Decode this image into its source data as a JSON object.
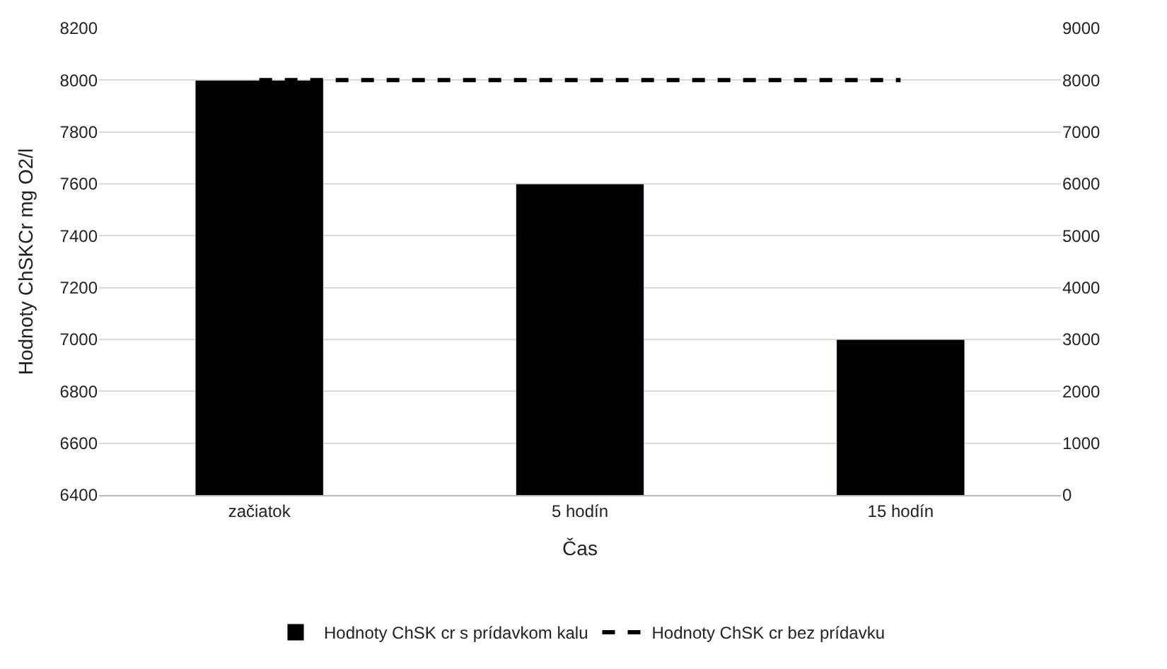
{
  "chart_data": {
    "type": "bar",
    "xlabel": "Čas",
    "ylabel": "Hodnoty ChSKCr mg O2/l",
    "categories": [
      "začiatok",
      "5 hodín",
      "15 hodín"
    ],
    "series": [
      {
        "name": "Hodnoty ChSK cr s prídavkom kalu",
        "color": "#000000",
        "values": [
          8000,
          7600,
          7000
        ]
      },
      {
        "name": "Hodnoty ChSK cr bez prídavku",
        "type": "line",
        "axis": "y2",
        "color": "#000000",
        "line_style": "dashed",
        "values": [
          8000,
          8000,
          8000
        ]
      }
    ],
    "ylim": [
      6400,
      8200
    ],
    "yticks": [
      6400,
      6600,
      6800,
      7000,
      7200,
      7400,
      7600,
      7800,
      8000,
      8200
    ],
    "y2lim": [
      0,
      9000
    ],
    "y2ticks": [
      0,
      1000,
      2000,
      3000,
      4000,
      5000,
      6000,
      7000,
      8000,
      9000
    ],
    "grid": "y",
    "legend": "bottom",
    "marker": "none"
  }
}
